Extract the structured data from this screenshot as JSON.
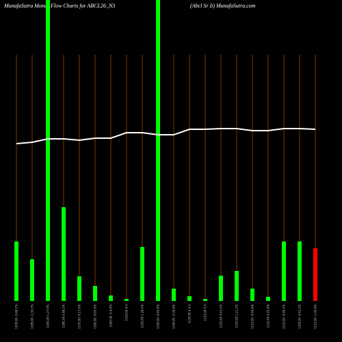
{
  "chart_data": {
    "type": "bar",
    "title": "MunafaSutra  Money Flow  Charts for ABCL26_N3",
    "subtitle": "(Abcl Sr Ii) MunafaSutra.com",
    "categories": [
      "1200.00 -0.48.1%",
      "1185.00 -1.30.1%",
      "1200.00 1.27.0%",
      "1185.00 0.48.1%",
      "1175.00 -0.17.0%",
      "1160.00 -0.03.0%",
      "1165.00 -0.4.0%",
      "1150.00 0.0",
      "1150.00 1.28.1%",
      "1145.00 -0.43.0%",
      "1140.00 -0.39.0%",
      "1125.00 0.4.0",
      "1120.00 0.0",
      "1125.00 0.41.1%",
      "1130.00 1.21.1%",
      "1115.00 -0.44.0%",
      "1115.00 0.22.0%",
      "1110.00 -0.40.1%",
      "1105.00 -0.41.1%",
      "1115.00 -1.00.0%"
    ],
    "values": [
      87,
      61,
      440,
      137,
      36,
      22,
      8,
      3,
      79,
      440,
      18,
      7,
      3,
      37,
      44,
      18,
      6,
      87,
      87,
      77
    ],
    "colors": [
      "#00ff00",
      "#00ff00",
      "#00ff00",
      "#00ff00",
      "#00ff00",
      "#00ff00",
      "#00ff00",
      "#00ff00",
      "#00ff00",
      "#00ff00",
      "#00ff00",
      "#00ff00",
      "#00ff00",
      "#00ff00",
      "#00ff00",
      "#00ff00",
      "#00ff00",
      "#00ff00",
      "#00ff00",
      "#ff0000"
    ],
    "line": {
      "color": "#ffffff",
      "values": [
        230,
        232,
        237,
        237,
        235,
        238,
        238,
        246,
        246,
        243,
        243,
        251,
        251,
        252,
        252,
        249,
        249,
        252,
        252,
        251
      ]
    },
    "ylim": [
      0,
      440
    ],
    "grid_color": "#7a3d00"
  }
}
